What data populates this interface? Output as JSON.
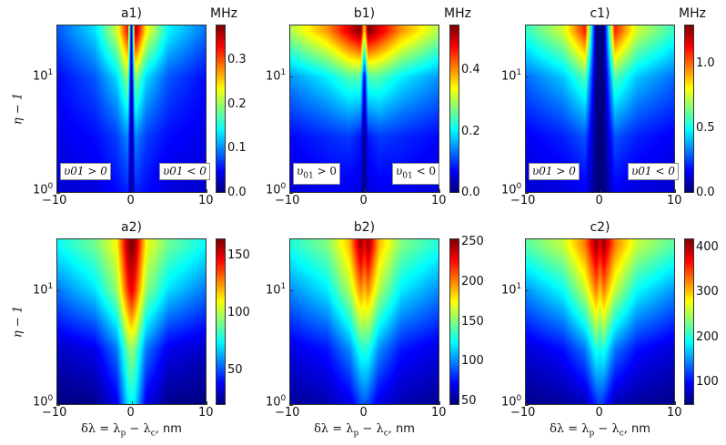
{
  "chart_data": {
    "type": "heatmap",
    "colormap": "jet",
    "x_grid": [
      -10,
      -5,
      -2,
      -0.5,
      0,
      0.5,
      2,
      5,
      10
    ],
    "y_grid": [
      1,
      3,
      10,
      25
    ],
    "xlim": [
      -10,
      10
    ],
    "ylim": [
      1,
      28
    ],
    "yscale": "log",
    "xticks": [
      "−10",
      "0",
      "10"
    ],
    "xtick_values": [
      -10,
      0,
      10
    ],
    "yticks": [
      {
        "base": "10",
        "exp": "0",
        "value": 1
      },
      {
        "base": "10",
        "exp": "1",
        "value": 10
      }
    ],
    "ylabel": "η − 1",
    "xlabel_parts": [
      "δλ = λ",
      "p",
      " − λ",
      "c",
      ",  "
    ],
    "xlabel_unit": "nm",
    "annotations": {
      "left": "υ01 > 0",
      "right": "υ01 < 0",
      "left_sym": "υ",
      "left_sub": "01",
      "left_rel": " > 0",
      "right_sym": "υ",
      "right_sub": "01",
      "right_rel": " < 0"
    },
    "panels": [
      {
        "id": "a1",
        "title": "a1)",
        "unit": "MHz",
        "zlim": [
          0,
          0.38
        ],
        "cticks": [
          [
            "0.0",
            0
          ],
          [
            "0.1",
            0.1
          ],
          [
            "0.2",
            0.2
          ],
          [
            "0.3",
            0.3
          ]
        ],
        "annotated": true,
        "z": [
          [
            0.03,
            0.035,
            0.05,
            0.06,
            0.0,
            0.06,
            0.05,
            0.035,
            0.03
          ],
          [
            0.04,
            0.05,
            0.07,
            0.1,
            0.0,
            0.1,
            0.07,
            0.05,
            0.04
          ],
          [
            0.05,
            0.08,
            0.13,
            0.2,
            0.0,
            0.2,
            0.13,
            0.08,
            0.05
          ],
          [
            0.08,
            0.13,
            0.22,
            0.33,
            0.0,
            0.37,
            0.24,
            0.14,
            0.09
          ]
        ]
      },
      {
        "id": "b1",
        "title": "b1)",
        "unit": "MHz",
        "zlim": [
          0,
          0.55
        ],
        "cticks": [
          [
            "0.0",
            0
          ],
          [
            "0.2",
            0.2
          ],
          [
            "0.4",
            0.4
          ]
        ],
        "annotated": true,
        "z": [
          [
            0.05,
            0.06,
            0.06,
            0.05,
            0.0,
            0.05,
            0.06,
            0.06,
            0.05
          ],
          [
            0.07,
            0.09,
            0.1,
            0.08,
            0.0,
            0.08,
            0.1,
            0.09,
            0.07
          ],
          [
            0.15,
            0.2,
            0.25,
            0.25,
            0.05,
            0.25,
            0.25,
            0.2,
            0.15
          ],
          [
            0.3,
            0.4,
            0.5,
            0.55,
            0.35,
            0.55,
            0.5,
            0.4,
            0.3
          ]
        ]
      },
      {
        "id": "c1",
        "title": "c1)",
        "unit": "MHz",
        "zlim": [
          0,
          1.3
        ],
        "cticks": [
          [
            "0.0",
            0
          ],
          [
            "0.5",
            0.5
          ],
          [
            "1.0",
            1.0
          ]
        ],
        "annotated": true,
        "z": [
          [
            0.1,
            0.12,
            0.15,
            0.0,
            0.0,
            0.0,
            0.15,
            0.12,
            0.1
          ],
          [
            0.15,
            0.2,
            0.27,
            0.0,
            0.0,
            0.0,
            0.27,
            0.2,
            0.15
          ],
          [
            0.3,
            0.42,
            0.6,
            0.0,
            0.0,
            0.0,
            0.6,
            0.42,
            0.3
          ],
          [
            0.55,
            0.75,
            1.1,
            0.0,
            0.0,
            0.0,
            1.1,
            0.75,
            0.55
          ]
        ]
      },
      {
        "id": "a2",
        "title": "a2)",
        "unit": "",
        "zlim": [
          20,
          165
        ],
        "cticks": [
          [
            "50",
            50
          ],
          [
            "100",
            100
          ],
          [
            "150",
            150
          ]
        ],
        "annotated": false,
        "z": [
          [
            20,
            22,
            35,
            70,
            75,
            70,
            35,
            22,
            20
          ],
          [
            30,
            35,
            55,
            90,
            95,
            90,
            55,
            35,
            30
          ],
          [
            55,
            70,
            95,
            140,
            150,
            140,
            95,
            70,
            55
          ],
          [
            75,
            90,
            110,
            160,
            165,
            160,
            110,
            90,
            75
          ]
        ]
      },
      {
        "id": "b2",
        "title": "b2)",
        "unit": "",
        "zlim": [
          45,
          255
        ],
        "cticks": [
          [
            "50",
            50
          ],
          [
            "100",
            100
          ],
          [
            "150",
            150
          ],
          [
            "200",
            200
          ],
          [
            "250",
            250
          ]
        ],
        "annotated": false,
        "z": [
          [
            50,
            55,
            65,
            85,
            90,
            85,
            65,
            55,
            50
          ],
          [
            65,
            75,
            100,
            130,
            130,
            130,
            100,
            75,
            65
          ],
          [
            100,
            120,
            160,
            200,
            190,
            200,
            160,
            120,
            100
          ],
          [
            130,
            150,
            190,
            250,
            230,
            250,
            190,
            150,
            130
          ]
        ]
      },
      {
        "id": "c2",
        "title": "c2)",
        "unit": "",
        "zlim": [
          50,
          420
        ],
        "cticks": [
          [
            "100",
            100
          ],
          [
            "200",
            200
          ],
          [
            "300",
            300
          ],
          [
            "400",
            400
          ]
        ],
        "annotated": false,
        "z": [
          [
            55,
            60,
            70,
            110,
            120,
            110,
            70,
            60,
            55
          ],
          [
            80,
            100,
            140,
            200,
            190,
            200,
            140,
            100,
            80
          ],
          [
            150,
            190,
            260,
            330,
            300,
            330,
            260,
            190,
            150
          ],
          [
            220,
            260,
            330,
            410,
            380,
            410,
            330,
            260,
            220
          ]
        ]
      }
    ]
  }
}
